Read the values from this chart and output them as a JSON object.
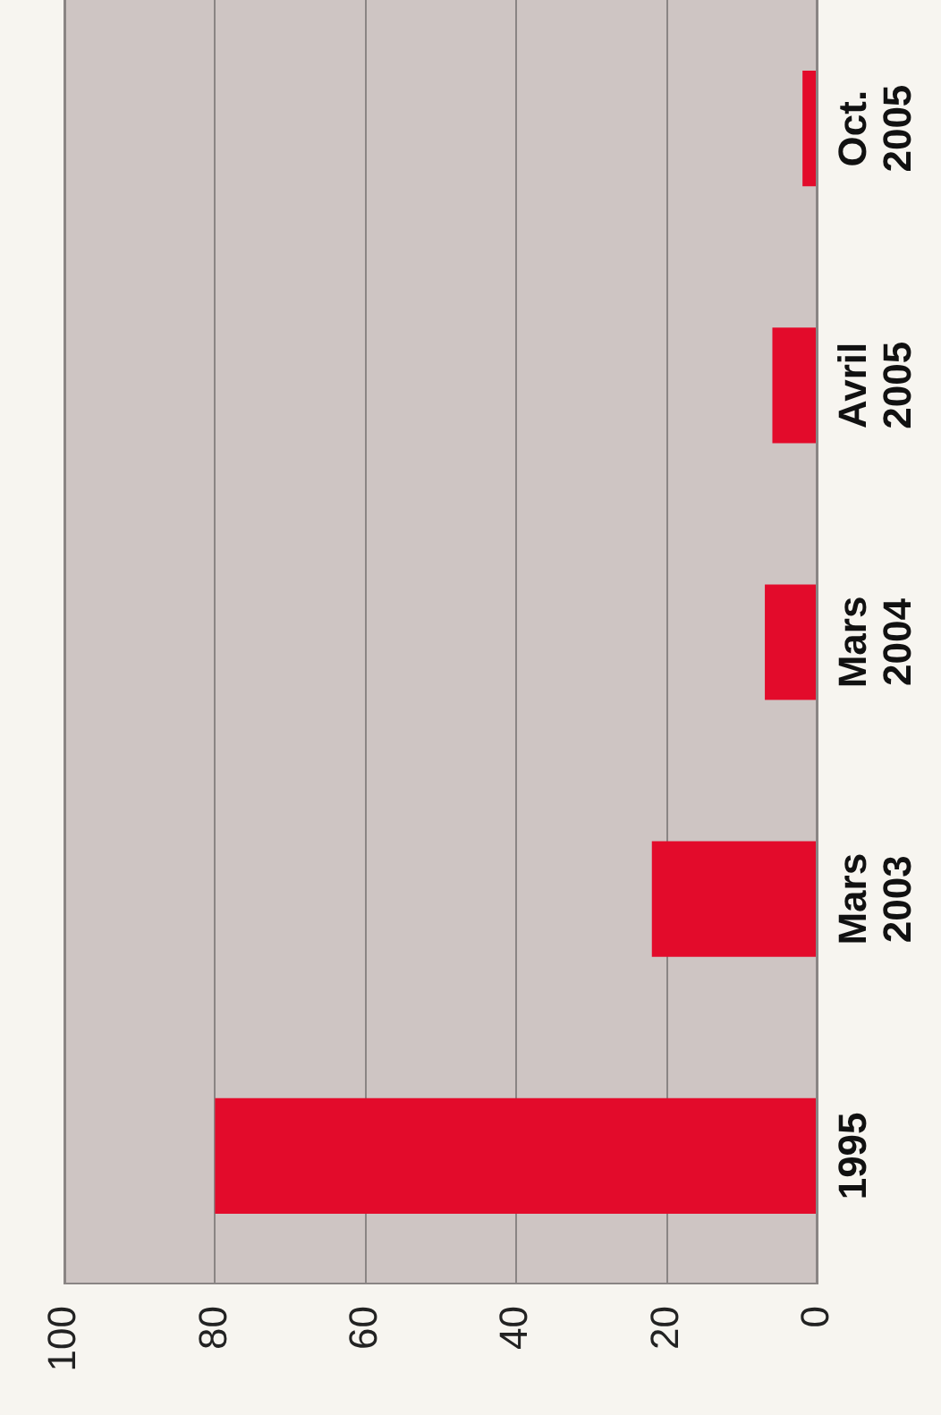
{
  "chart_data": {
    "type": "bar",
    "orientation": "horizontal",
    "categories": [
      "Oct. 2005",
      "Avril 2005",
      "Mars 2004",
      "Mars 2003",
      "1995"
    ],
    "values": [
      2,
      6,
      7,
      22,
      80
    ],
    "color": "#e30b2b",
    "xlim": [
      100,
      0
    ],
    "xticks": [
      0,
      20,
      40,
      60,
      80,
      100
    ],
    "grid": "x"
  }
}
